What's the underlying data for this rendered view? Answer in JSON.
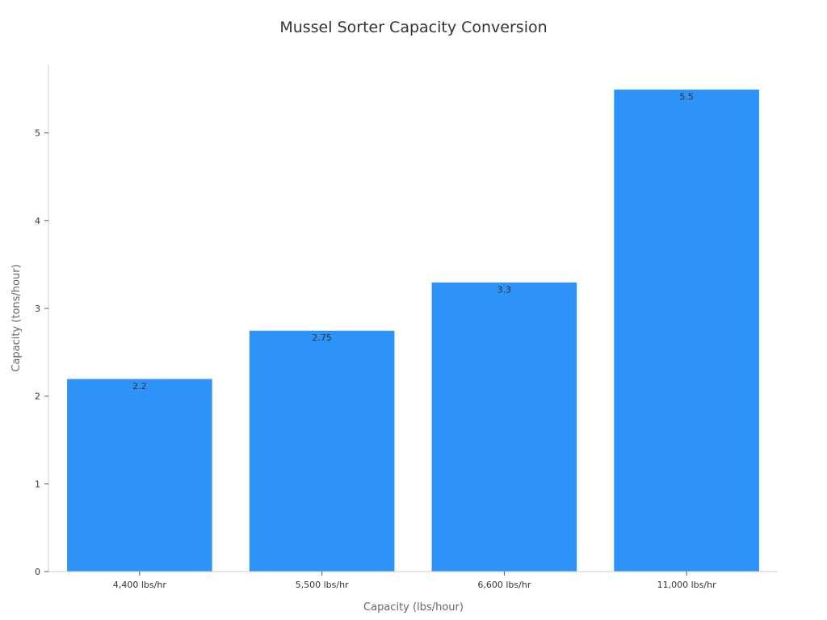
{
  "chart_data": {
    "type": "bar",
    "title": "Mussel Sorter Capacity Conversion",
    "xlabel": "Capacity (lbs/hour)",
    "ylabel": "Capacity (tons/hour)",
    "categories": [
      "4,400 lbs/hr",
      "5,500 lbs/hr",
      "6,600 lbs/hr",
      "11,000 lbs/hr"
    ],
    "values": [
      2.2,
      2.75,
      3.3,
      5.5
    ],
    "data_labels": [
      "2.2",
      "2.75",
      "3.3",
      "5.5"
    ],
    "ylim": [
      0,
      5.78
    ],
    "yticks": [
      0,
      1,
      2,
      3,
      4,
      5
    ],
    "bar_color": "#2e93f8",
    "grid": false,
    "legend": "none"
  }
}
